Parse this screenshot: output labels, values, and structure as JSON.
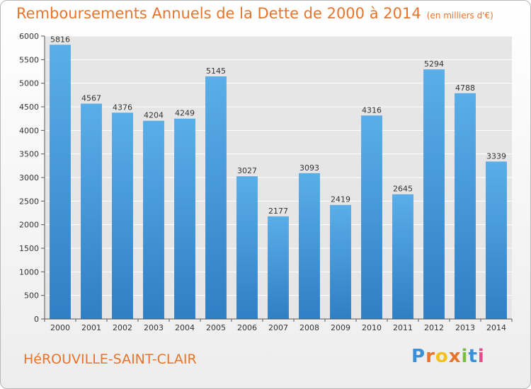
{
  "title": "Remboursements Annuels de la Dette de 2000 à 2014",
  "unit": "(en milliers d'€)",
  "commune": "HéROUVILLE-SAINT-CLAIR",
  "logo": {
    "letters": [
      "P",
      "r",
      "o",
      "x",
      "i",
      "t",
      "i"
    ],
    "colors": [
      "#3a8fd6",
      "#e8742a",
      "#f2c21b",
      "#e8742a",
      "#7cbf3a",
      "#3a8fd6",
      "#e84a8a"
    ]
  },
  "colors": {
    "bar_light": "#5aaee8",
    "bar_dark": "#2f7fc4",
    "accent": "#e8742a"
  },
  "chart_data": {
    "type": "bar",
    "categories": [
      "2000",
      "2001",
      "2002",
      "2003",
      "2004",
      "2005",
      "2006",
      "2007",
      "2008",
      "2009",
      "2010",
      "2011",
      "2012",
      "2013",
      "2014"
    ],
    "values": [
      5816,
      4567,
      4376,
      4204,
      4249,
      5145,
      3027,
      2177,
      3093,
      2419,
      4316,
      2645,
      5294,
      4788,
      3339
    ],
    "ylim": [
      0,
      6000
    ],
    "yticks": [
      0,
      500,
      1000,
      1500,
      2000,
      2500,
      3000,
      3500,
      4000,
      4500,
      5000,
      5500,
      6000
    ],
    "grid": true,
    "xlabel": "",
    "ylabel": ""
  }
}
